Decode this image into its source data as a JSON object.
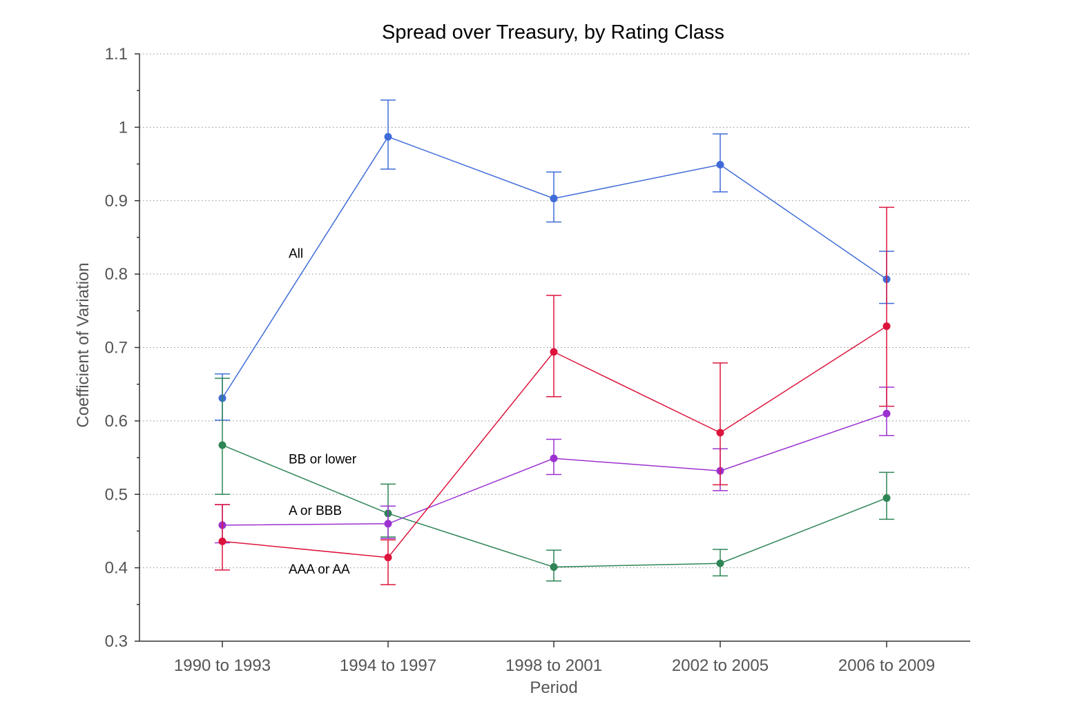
{
  "chart_data": {
    "type": "line",
    "title": "Spread over Treasury, by Rating Class",
    "xlabel": "Period",
    "ylabel": "Coefficient of Variation",
    "categories": [
      "1990 to 1993",
      "1994 to 1997",
      "1998 to 2001",
      "2002 to 2005",
      "2006 to 2009"
    ],
    "ylim": [
      0.3,
      1.1
    ],
    "yticks": [
      "0.3",
      "0.4",
      "0.5",
      "0.6",
      "0.7",
      "0.8",
      "0.9",
      "1",
      "1.1"
    ],
    "grid": "horizontal dotted",
    "series": [
      {
        "name": "All",
        "color": "#3f6cd8",
        "values": [
          0.631,
          0.987,
          0.903,
          0.949,
          0.793
        ],
        "lower": [
          0.601,
          0.943,
          0.871,
          0.912,
          0.76
        ],
        "upper": [
          0.664,
          1.037,
          0.939,
          0.991,
          0.831
        ]
      },
      {
        "name": "BB or lower",
        "color": "#2e8555",
        "values": [
          0.567,
          0.474,
          0.401,
          0.406,
          0.495
        ],
        "lower": [
          0.5,
          0.442,
          0.382,
          0.389,
          0.466
        ],
        "upper": [
          0.658,
          0.514,
          0.424,
          0.425,
          0.53
        ]
      },
      {
        "name": "A or BBB",
        "color": "#9b30d0",
        "values": [
          0.458,
          0.46,
          0.549,
          0.532,
          0.61
        ],
        "lower": [
          0.434,
          0.44,
          0.527,
          0.505,
          0.58
        ],
        "upper": [
          0.486,
          0.484,
          0.575,
          0.562,
          0.646
        ]
      },
      {
        "name": "AAA or AA",
        "color": "#dc143c",
        "values": [
          0.436,
          0.414,
          0.694,
          0.584,
          0.729
        ],
        "lower": [
          0.397,
          0.377,
          0.633,
          0.513,
          0.62
        ],
        "upper": [
          0.486,
          0.438,
          0.771,
          0.679,
          0.891
        ]
      }
    ]
  }
}
